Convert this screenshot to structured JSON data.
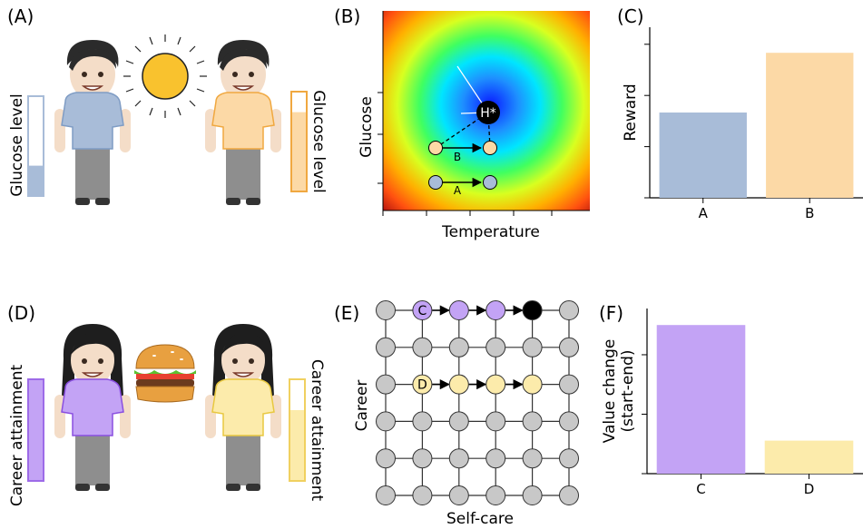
{
  "panels": {
    "a": {
      "label": "(A)",
      "bar_left": "Glucose level",
      "bar_right": "Glucose level",
      "left_fill": 0.3,
      "right_fill": 0.8,
      "left_color": "#a8bcd8",
      "right_color": "#fcd9a6"
    },
    "b": {
      "label": "(B)",
      "xlabel": "Temperature",
      "ylabel": "Glucose",
      "h_label": "H*",
      "path_b": "B",
      "path_a": "A"
    },
    "c": {
      "label": "(C)"
    },
    "d": {
      "label": "(D)",
      "bar_left": "Career attainment",
      "bar_right": "Career attainment",
      "left_fill": 1.0,
      "right_fill": 0.7,
      "left_color": "#c3a3f5",
      "right_color": "#fcebab"
    },
    "e": {
      "label": "(E)",
      "xlabel": "Self-care",
      "ylabel": "Career",
      "node_c": "C",
      "node_d": "D"
    },
    "f": {
      "label": "(F)"
    }
  },
  "chart_data": [
    {
      "type": "bar",
      "panel": "C",
      "categories": [
        "A",
        "B"
      ],
      "values": [
        0.5,
        0.85
      ],
      "colors": [
        "#a8bcd8",
        "#fcd9a6"
      ],
      "xlabel": "",
      "ylabel": "Reward",
      "ylim": [
        0,
        1
      ]
    },
    {
      "type": "bar",
      "panel": "F",
      "categories": [
        "C",
        "D"
      ],
      "values": [
        0.9,
        0.2
      ],
      "colors": [
        "#c3a3f5",
        "#fcebab"
      ],
      "xlabel": "",
      "ylabel": "Value change\n(start-end)",
      "ylim": [
        0,
        1
      ]
    }
  ],
  "colors": {
    "blue_shirt": "#a8bcd8",
    "orange_shirt": "#fcd9a6",
    "purple_shirt": "#c3a3f5",
    "yellow_shirt": "#fcebab",
    "node_gray": "#c8c8c8",
    "node_black": "#000000"
  },
  "icons": [
    "person-icon",
    "sun-icon",
    "burger-icon"
  ]
}
